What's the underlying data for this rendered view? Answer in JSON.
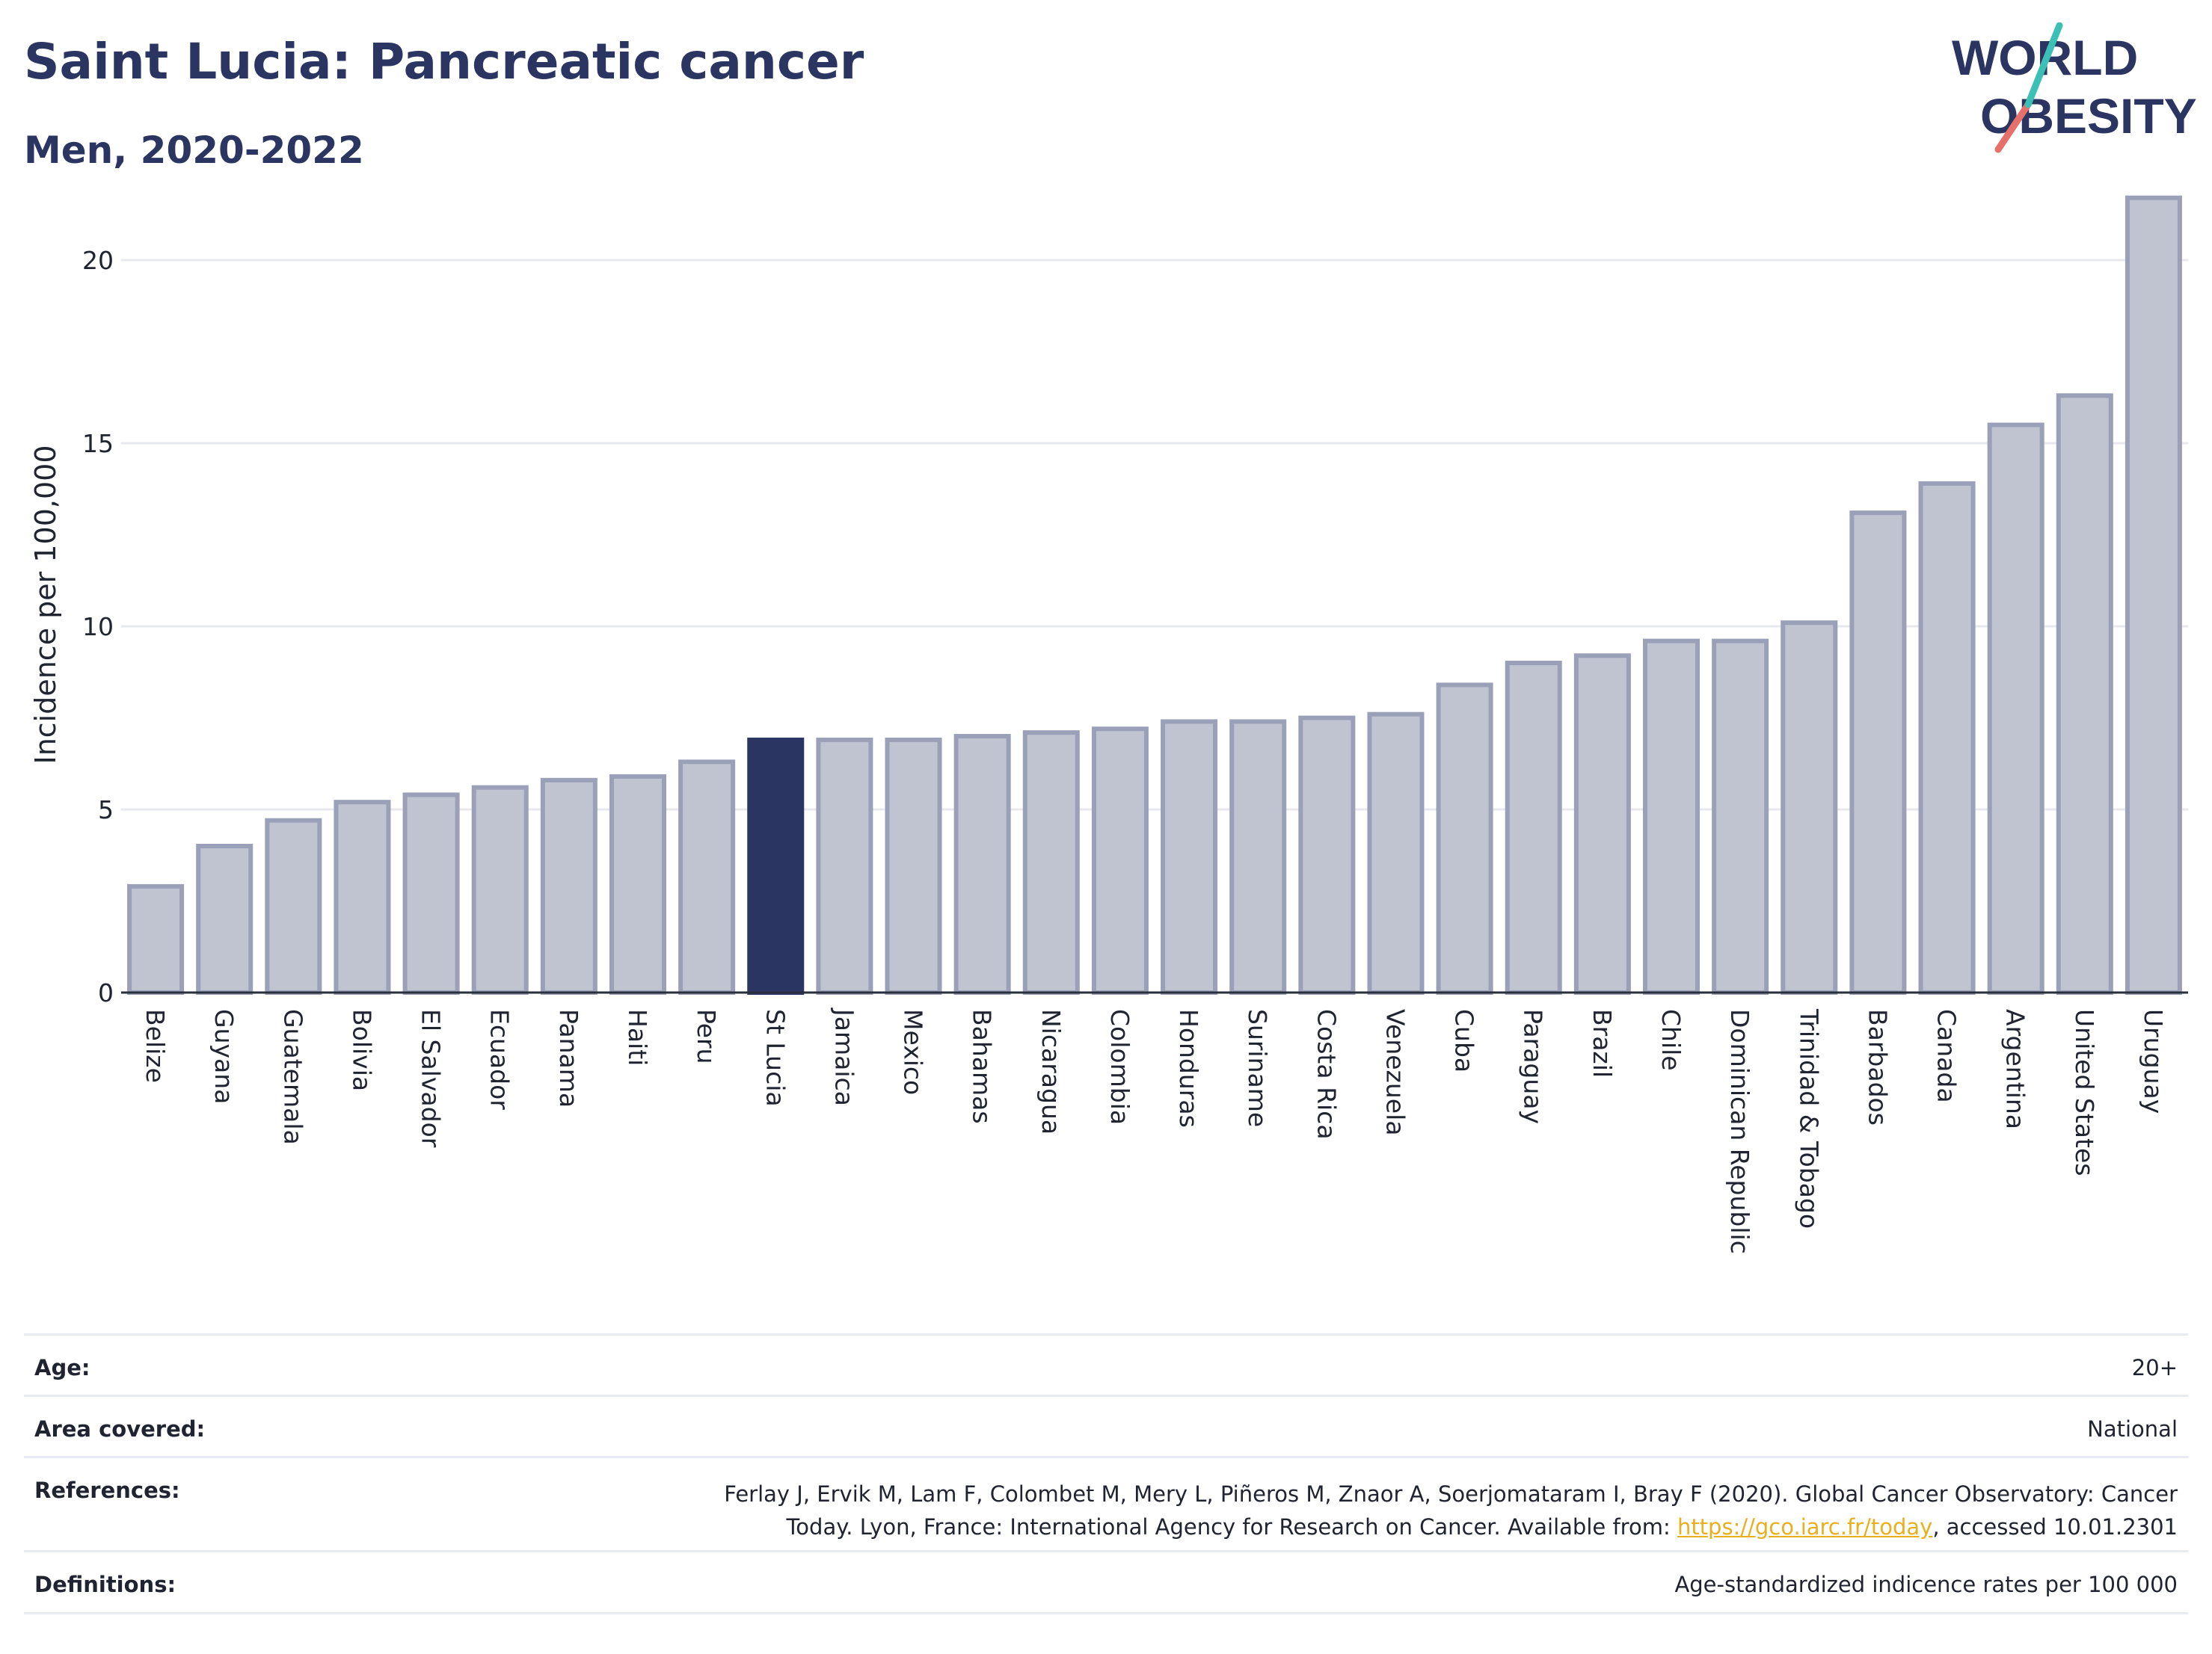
{
  "header": {
    "title": "Saint Lucia: Pancreatic cancer",
    "subtitle": "Men, 2020-2022"
  },
  "logo": {
    "line1": "WORLD",
    "line2": "OBESITY"
  },
  "colors": {
    "title": "#2b3562",
    "bar_default": "#c0c3d0",
    "bar_default_stroke": "#9aa0b8",
    "bar_highlight": "#2b3562",
    "grid": "#e6e8ee",
    "link": "#e8b01e"
  },
  "chart_data": {
    "type": "bar",
    "ylabel": "Incidence per 100,000",
    "ylim": [
      0,
      22
    ],
    "yticks": [
      0,
      5,
      10,
      15,
      20
    ],
    "grid": true,
    "highlight": "St Lucia",
    "categories": [
      "Belize",
      "Guyana",
      "Guatemala",
      "Bolivia",
      "El Salvador",
      "Ecuador",
      "Panama",
      "Haiti",
      "Peru",
      "St Lucia",
      "Jamaica",
      "Mexico",
      "Bahamas",
      "Nicaragua",
      "Colombia",
      "Honduras",
      "Suriname",
      "Costa Rica",
      "Venezuela",
      "Cuba",
      "Paraguay",
      "Brazil",
      "Chile",
      "Dominican Republic",
      "Trinidad & Tobago",
      "Barbados",
      "Canada",
      "Argentina",
      "United States",
      "Uruguay"
    ],
    "values": [
      2.9,
      4.0,
      4.7,
      5.2,
      5.4,
      5.6,
      5.8,
      5.9,
      6.3,
      6.9,
      6.9,
      6.9,
      7.0,
      7.1,
      7.2,
      7.4,
      7.4,
      7.5,
      7.6,
      8.4,
      9.0,
      9.2,
      9.6,
      9.6,
      10.1,
      13.1,
      13.9,
      15.5,
      16.3,
      21.7
    ]
  },
  "meta": {
    "age": {
      "label": "Age:",
      "value": "20+"
    },
    "area": {
      "label": "Area covered:",
      "value": "National"
    },
    "references": {
      "label": "References:",
      "line1": "Ferlay J, Ervik M, Lam F, Colombet M, Mery L, Piñeros M, Znaor A, Soerjomataram I, Bray F (2020). Global Cancer Observatory: Cancer",
      "line2_prefix": "Today. Lyon, France: International Agency for Research on Cancer. Available from: ",
      "link": "https://gco.iarc.fr/today",
      "line2_suffix": ", accessed 10.01.2301"
    },
    "definitions": {
      "label": "Definitions:",
      "value": "Age-standardized indicence rates per 100 000"
    }
  }
}
